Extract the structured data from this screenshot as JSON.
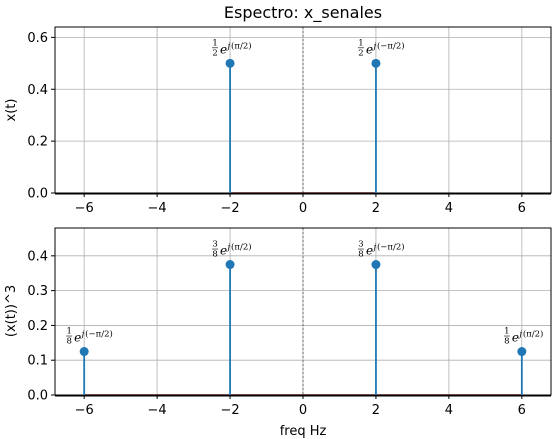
{
  "chart_data": [
    {
      "type": "stem",
      "title": "Espectro: x_senales",
      "xlabel": "",
      "ylabel": "x(t)",
      "xlim": [
        -6.8,
        6.8
      ],
      "ylim": [
        0,
        0.64
      ],
      "xticks": [
        -6,
        -4,
        -2,
        0,
        2,
        4,
        6
      ],
      "xtick_labels": [
        "−6",
        "−4",
        "−2",
        "0",
        "2",
        "4",
        "6"
      ],
      "yticks": [
        0.0,
        0.2,
        0.4,
        0.6
      ],
      "ytick_labels": [
        "0.0",
        "0.2",
        "0.4",
        "0.6"
      ],
      "grid": true,
      "points": [
        {
          "x": -2,
          "y": 0.5,
          "coef_num": "1",
          "coef_den": "2",
          "phase": "(π/2)"
        },
        {
          "x": 2,
          "y": 0.5,
          "coef_num": "1",
          "coef_den": "2",
          "phase": "(−π/2)"
        }
      ]
    },
    {
      "type": "stem",
      "title": "",
      "xlabel": "freq Hz",
      "ylabel": "(x(t))^3",
      "xlim": [
        -6.8,
        6.8
      ],
      "ylim": [
        0,
        0.48
      ],
      "xticks": [
        -6,
        -4,
        -2,
        0,
        2,
        4,
        6
      ],
      "xtick_labels": [
        "−6",
        "−4",
        "−2",
        "0",
        "2",
        "4",
        "6"
      ],
      "yticks": [
        0.0,
        0.1,
        0.2,
        0.3,
        0.4
      ],
      "ytick_labels": [
        "0.0",
        "0.1",
        "0.2",
        "0.3",
        "0.4"
      ],
      "grid": true,
      "points": [
        {
          "x": -6,
          "y": 0.125,
          "coef_num": "1",
          "coef_den": "8",
          "phase": "(−π/2)"
        },
        {
          "x": -2,
          "y": 0.375,
          "coef_num": "3",
          "coef_den": "8",
          "phase": "(π/2)"
        },
        {
          "x": 2,
          "y": 0.375,
          "coef_num": "3",
          "coef_den": "8",
          "phase": "(−π/2)"
        },
        {
          "x": 6,
          "y": 0.125,
          "coef_num": "1",
          "coef_den": "8",
          "phase": "(π/2)"
        }
      ]
    }
  ],
  "colors": {
    "stem": "#1f77b4",
    "baseline": "#d62728",
    "grid": "#b0b0b0",
    "zero_line": "#808080",
    "axis": "#000000"
  }
}
